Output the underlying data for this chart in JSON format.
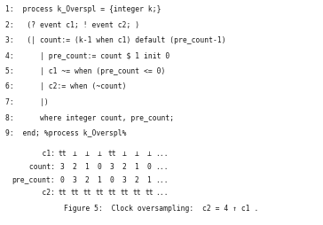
{
  "code_lines": [
    "1:  process k_Overspl = {integer k;}",
    "2:   (? event c1; ! event c2; )",
    "3:   (| count:= (k-1 when c1) default (pre_count-1)",
    "4:      | pre_count:= count $ 1 init 0",
    "5:      | c1 ~= when (pre_count <= 0)",
    "6:      | c2:= when (~count)",
    "7:      |)",
    "8:      where integer count, pre_count;",
    "9:  end; %process k_Overspl%"
  ],
  "table_label_col": [
    "    c1:",
    " count:",
    "pre_count:",
    "     c2:"
  ],
  "table_data": [
    [
      "tt",
      "⊥",
      "⊥",
      "⊥",
      "tt",
      "⊥",
      "⊥",
      "⊥",
      "..."
    ],
    [
      "3",
      "2",
      "1",
      "0",
      "3",
      "2",
      "1",
      "0",
      "..."
    ],
    [
      "0",
      "3",
      "2",
      "1",
      "0",
      "3",
      "2",
      "1",
      "..."
    ],
    [
      "tt",
      "tt",
      "tt",
      "tt",
      "tt",
      "tt",
      "tt",
      "tt",
      "..."
    ]
  ],
  "caption": "Figure 5:  Clock oversampling:  c2 = 4 ↑ c1 .",
  "bg_color": "#ffffff",
  "text_color": "#1a1a1a",
  "code_font_size": 5.8,
  "table_font_size": 5.8,
  "caption_font_size": 5.8
}
